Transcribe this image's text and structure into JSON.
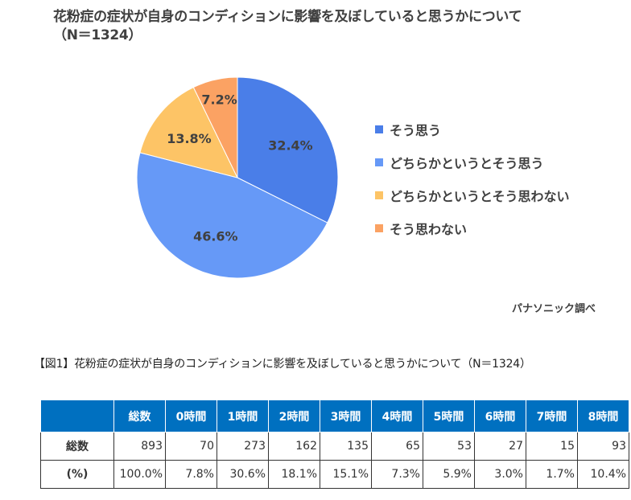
{
  "chart_data": {
    "type": "pie",
    "title": "花粉症の症状が自身のコンディションに影響を及ぼしていると思うかについて",
    "subtitle": "（N＝1324）",
    "legend_position": "right",
    "slices": [
      {
        "label": "そう思う",
        "value": 32.4,
        "display": "32.4%",
        "color": "#4a7ee8"
      },
      {
        "label": "どちらかというとそう思う",
        "value": 46.6,
        "display": "46.6%",
        "color": "#6699f7"
      },
      {
        "label": "どちらかというとそう思わない",
        "value": 13.8,
        "display": "13.8%",
        "color": "#fdc466"
      },
      {
        "label": "そう思わない",
        "value": 7.2,
        "display": "7.2%",
        "color": "#fba263"
      }
    ]
  },
  "source": "パナソニック調べ",
  "caption": "【図1】花粉症の症状が自身のコンディションに影響を及ぼしていると思うかについて（N＝1324）",
  "table": {
    "header_color": "#0070c0",
    "headers": [
      "",
      "総数",
      "0時間",
      "1時間",
      "2時間",
      "3時間",
      "4時間",
      "5時間",
      "6時間",
      "7時間",
      "8時間"
    ],
    "rows": [
      [
        "総数",
        "893",
        "70",
        "273",
        "162",
        "135",
        "65",
        "53",
        "27",
        "15",
        "93"
      ],
      [
        "(%)",
        "100.0%",
        "7.8%",
        "30.6%",
        "18.1%",
        "15.1%",
        "7.3%",
        "5.9%",
        "3.0%",
        "1.7%",
        "10.4%"
      ]
    ]
  }
}
